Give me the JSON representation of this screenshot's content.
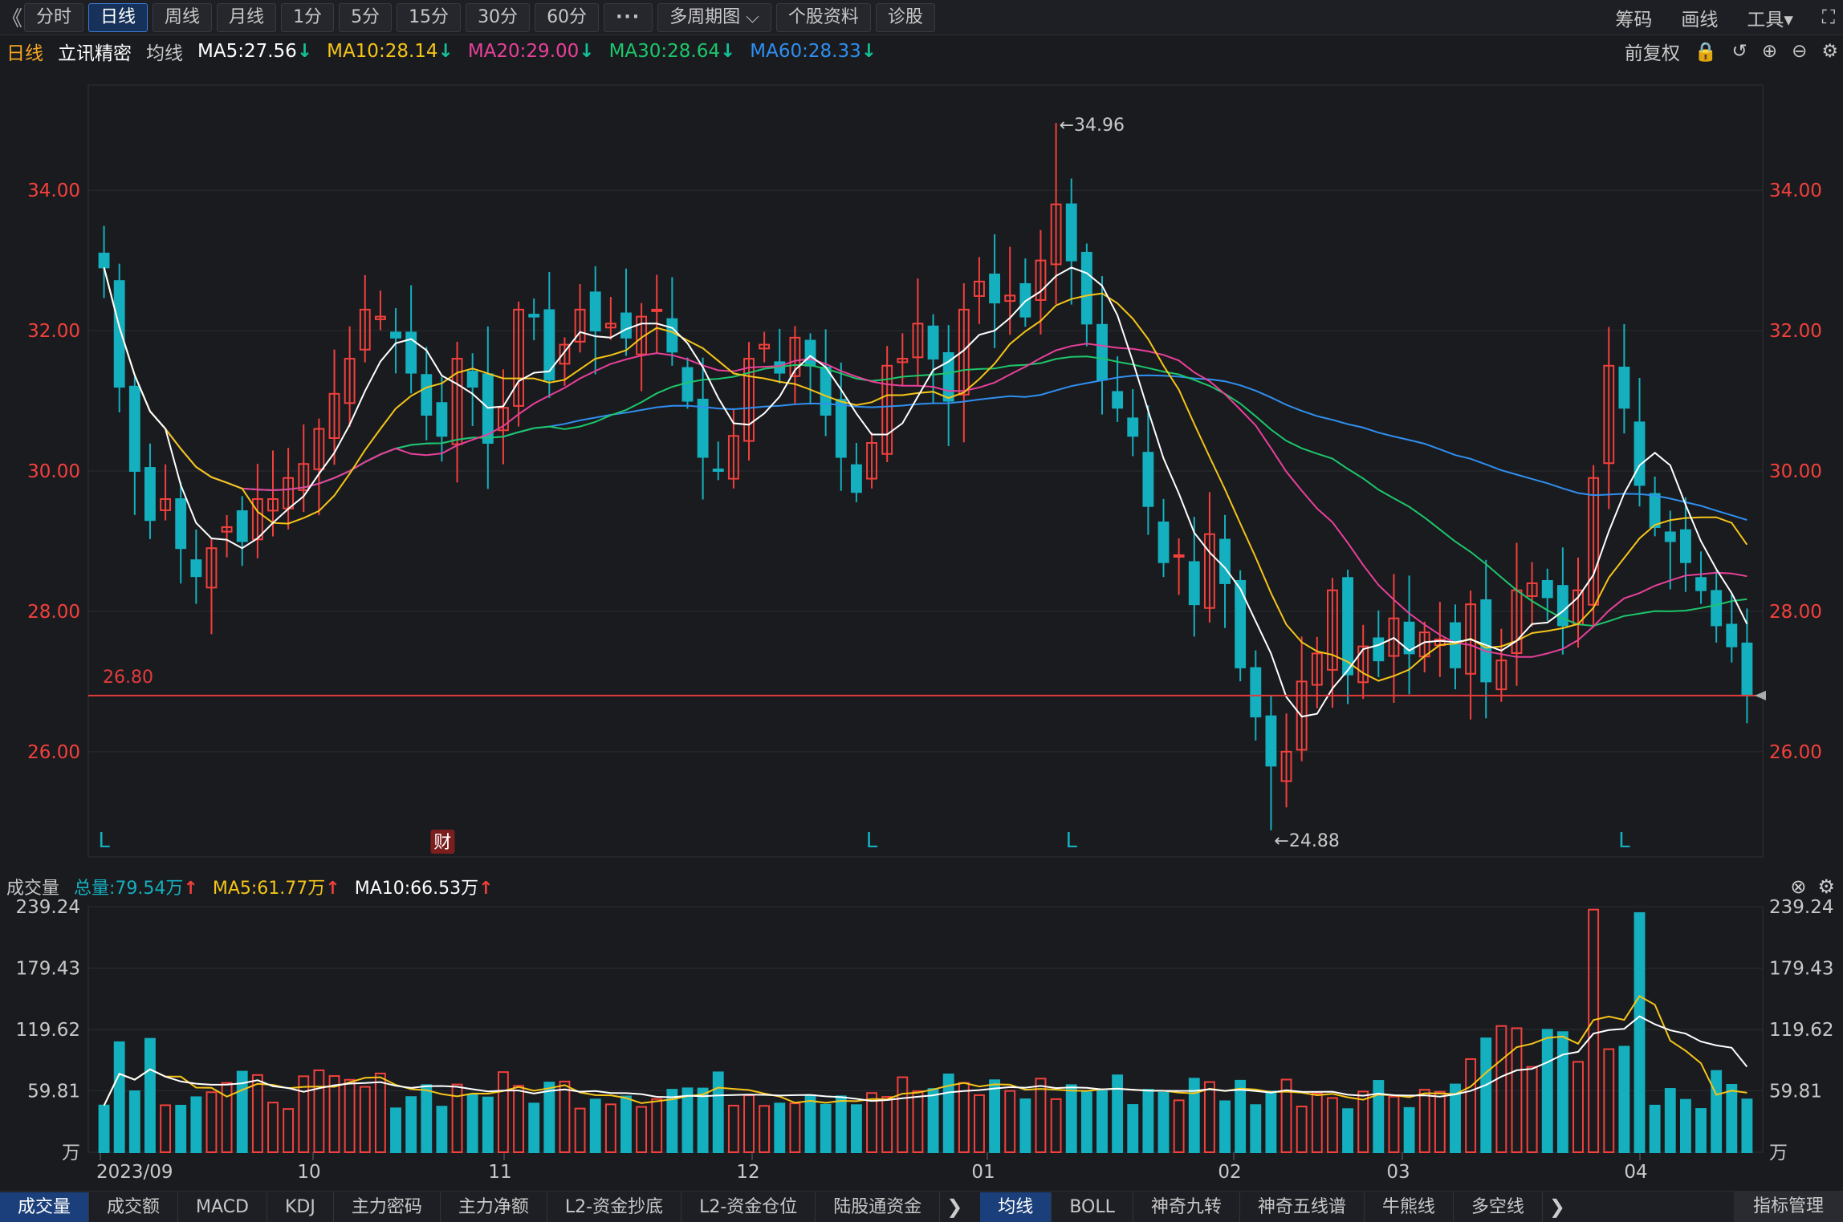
{
  "toolbar": {
    "collapse": "《",
    "periods": [
      "分时",
      "日线",
      "周线",
      "月线",
      "1分",
      "5分",
      "15分",
      "30分",
      "60分",
      "···",
      "多周期图 ⌵",
      "个股资料",
      "诊股"
    ],
    "active": 1,
    "right_tools": [
      "筹码",
      "画线",
      "工具▾",
      "⛶"
    ]
  },
  "info": {
    "period": "日线",
    "name": "立讯精密",
    "ma_label": "均线",
    "ma": [
      {
        "label": "MA5:27.56",
        "arrow": "↓",
        "color": "#ffffff"
      },
      {
        "label": "MA10:28.14",
        "arrow": "↓",
        "color": "#f5c518"
      },
      {
        "label": "MA20:29.00",
        "arrow": "↓",
        "color": "#e8409a"
      },
      {
        "label": "MA30:28.64",
        "arrow": "↓",
        "color": "#1dc66b"
      },
      {
        "label": "MA60:28.33",
        "arrow": "↓",
        "color": "#2f8ff0"
      }
    ],
    "right": [
      "前复权",
      "🔒",
      "↺",
      "⊕",
      "⊖",
      "⚙"
    ]
  },
  "price_axis": {
    "labels": [
      "34.00",
      "32.00",
      "30.00",
      "28.00",
      "26.00"
    ],
    "values": [
      34,
      32,
      30,
      28,
      26
    ]
  },
  "annotations": {
    "high": "←34.96",
    "low": "←24.88",
    "support": "26.80",
    "markers": [
      "L",
      "财",
      "L",
      "L",
      "L"
    ]
  },
  "volume_info": {
    "title": "成交量",
    "total": "总量:79.54万",
    "ma5": "MA5:61.77万",
    "ma10": "MA10:66.53万",
    "arrow": "↑",
    "close": [
      "⊗",
      "⚙"
    ]
  },
  "volume_axis": {
    "labels": [
      "239.24",
      "179.43",
      "119.62",
      "59.81",
      "万"
    ],
    "values": [
      239.24,
      179.43,
      119.62,
      59.81,
      0
    ]
  },
  "date_axis": [
    "2023/09",
    "10",
    "11",
    "12",
    "01",
    "02",
    "03",
    "04"
  ],
  "bottom_tabs": {
    "left": [
      "成交量",
      "成交额",
      "MACD",
      "KDJ",
      "主力密码",
      "主力净额",
      "L2-资金抄底",
      "L2-资金仓位",
      "陆股通资金"
    ],
    "right": [
      "均线",
      "BOLL",
      "神奇九转",
      "神奇五线谱",
      "牛熊线",
      "多空线"
    ],
    "far_right": "指标管理",
    "arrow": "❯"
  },
  "colors": {
    "up": "#f2403c",
    "down": "#14b0bf",
    "ma5": "#ffffff",
    "ma10": "#f5c518",
    "ma20": "#e8409a",
    "ma30": "#1dc66b",
    "ma60": "#2f8ff0",
    "support": "#e23c3c"
  },
  "chart_data": {
    "type": "candlestick",
    "y_range": [
      24.5,
      35.5
    ],
    "support_level": 26.8,
    "max_high": 34.96,
    "min_low": 24.88,
    "close": [
      32.9,
      31.2,
      30.0,
      29.3,
      29.6,
      28.9,
      28.5,
      28.9,
      29.2,
      29.0,
      29.6,
      29.6,
      29.9,
      30.1,
      30.6,
      31.1,
      31.6,
      32.3,
      32.2,
      31.9,
      31.4,
      30.8,
      30.5,
      31.6,
      31.2,
      30.4,
      30.9,
      32.3,
      32.2,
      31.3,
      31.8,
      32.3,
      32.0,
      32.1,
      31.9,
      32.2,
      32.3,
      31.7,
      31.0,
      30.2,
      30.0,
      30.5,
      31.6,
      31.8,
      31.4,
      31.9,
      31.5,
      30.8,
      30.2,
      29.7,
      30.4,
      31.5,
      31.6,
      32.1,
      31.6,
      31.0,
      32.3,
      32.7,
      32.4,
      32.5,
      32.2,
      33.0,
      33.8,
      33.0,
      32.1,
      31.3,
      30.9,
      30.5,
      29.5,
      28.7,
      28.8,
      28.1,
      29.1,
      28.4,
      27.2,
      26.5,
      25.8,
      26.0,
      27.0,
      27.4,
      28.3,
      27.1,
      27.5,
      27.3,
      27.9,
      27.4,
      27.7,
      27.6,
      27.2,
      28.1,
      27.0,
      27.3,
      28.3,
      28.4,
      28.2,
      27.8,
      28.3,
      29.9,
      31.5,
      30.9,
      29.8,
      29.2,
      29.0,
      28.7,
      28.3,
      27.8,
      27.5,
      26.8
    ],
    "ma": {
      "ma5": 27.56,
      "ma10": 28.14,
      "ma20": 29.0,
      "ma30": 28.64,
      "ma60": 28.33
    },
    "volume_total_wan": 79.54
  }
}
